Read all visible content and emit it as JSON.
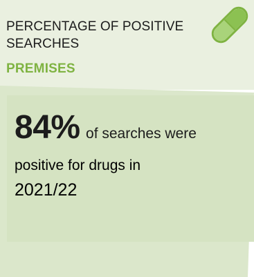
{
  "header": {
    "title": "PERCENTAGE OF POSITIVE SEARCHES",
    "subtitle": "PREMISES"
  },
  "stat": {
    "value": "84%",
    "text_part1": "of searches were",
    "text_part2": "positive for drugs in",
    "text_part3": "2021/22"
  },
  "colors": {
    "header_bg": "#eaf0e0",
    "body_bg": "#d8e6c6",
    "accent_green": "#7fb342",
    "text": "#1c1c1c"
  },
  "icons": {
    "corner": "pill-capsule-icon"
  }
}
